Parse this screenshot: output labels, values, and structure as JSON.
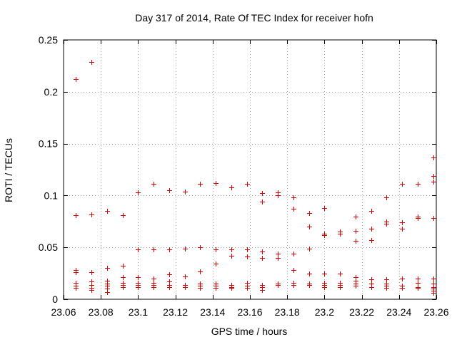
{
  "chart_data": {
    "type": "scatter",
    "title": "Day 317 of 2014, Rate Of TEC Index for receiver hofn",
    "xlabel": "GPS time / hours",
    "ylabel": "ROTI / TECUs",
    "xlim": [
      23.06,
      23.26
    ],
    "ylim": [
      0,
      0.25
    ],
    "xticks": [
      23.06,
      23.08,
      23.1,
      23.12,
      23.14,
      23.16,
      23.18,
      23.2,
      23.22,
      23.24,
      23.26
    ],
    "xtick_labels": [
      "23.06",
      "23.08",
      "23.1",
      "23.12",
      "23.14",
      "23.16",
      "23.18",
      "23.2",
      "23.22",
      "23.24",
      "23.26"
    ],
    "yticks": [
      0,
      0.05,
      0.1,
      0.15,
      0.2,
      0.25
    ],
    "ytick_labels": [
      "0",
      "0.05",
      "0.1",
      "0.15",
      "0.2",
      "0.25"
    ],
    "grid": true,
    "marker": "+",
    "color": "#dd0000",
    "series": [
      {
        "name": "ROTI",
        "points": [
          [
            23.0667,
            0.212
          ],
          [
            23.0667,
            0.081
          ],
          [
            23.0667,
            0.028
          ],
          [
            23.0667,
            0.026
          ],
          [
            23.0667,
            0.016
          ],
          [
            23.0667,
            0.013
          ],
          [
            23.0667,
            0.011
          ],
          [
            23.075,
            0.229
          ],
          [
            23.075,
            0.082
          ],
          [
            23.075,
            0.026
          ],
          [
            23.075,
            0.017
          ],
          [
            23.075,
            0.014
          ],
          [
            23.075,
            0.011
          ],
          [
            23.075,
            0.009
          ],
          [
            23.0833,
            0.085
          ],
          [
            23.0833,
            0.03
          ],
          [
            23.0833,
            0.018
          ],
          [
            23.0833,
            0.015
          ],
          [
            23.0833,
            0.013
          ],
          [
            23.0833,
            0.01
          ],
          [
            23.0833,
            0.007
          ],
          [
            23.0917,
            0.081
          ],
          [
            23.0917,
            0.032
          ],
          [
            23.0917,
            0.021
          ],
          [
            23.0917,
            0.016
          ],
          [
            23.0917,
            0.014
          ],
          [
            23.0917,
            0.012
          ],
          [
            23.1,
            0.103
          ],
          [
            23.1,
            0.048
          ],
          [
            23.1,
            0.021
          ],
          [
            23.1,
            0.016
          ],
          [
            23.1,
            0.014
          ],
          [
            23.1,
            0.012
          ],
          [
            23.1083,
            0.111
          ],
          [
            23.1083,
            0.048
          ],
          [
            23.1083,
            0.02
          ],
          [
            23.1083,
            0.016
          ],
          [
            23.1083,
            0.014
          ],
          [
            23.1083,
            0.012
          ],
          [
            23.1167,
            0.105
          ],
          [
            23.1167,
            0.048
          ],
          [
            23.1167,
            0.024
          ],
          [
            23.1167,
            0.017
          ],
          [
            23.1167,
            0.014
          ],
          [
            23.1167,
            0.012
          ],
          [
            23.125,
            0.104
          ],
          [
            23.125,
            0.049
          ],
          [
            23.125,
            0.022
          ],
          [
            23.125,
            0.014
          ],
          [
            23.125,
            0.012
          ],
          [
            23.1333,
            0.111
          ],
          [
            23.1333,
            0.05
          ],
          [
            23.1333,
            0.027
          ],
          [
            23.1333,
            0.015
          ],
          [
            23.1333,
            0.013
          ],
          [
            23.1333,
            0.011
          ],
          [
            23.1417,
            0.112
          ],
          [
            23.1417,
            0.048
          ],
          [
            23.1417,
            0.034
          ],
          [
            23.1417,
            0.015
          ],
          [
            23.1417,
            0.013
          ],
          [
            23.1417,
            0.011
          ],
          [
            23.15,
            0.108
          ],
          [
            23.15,
            0.048
          ],
          [
            23.15,
            0.042
          ],
          [
            23.15,
            0.014
          ],
          [
            23.15,
            0.012
          ],
          [
            23.15,
            0.011
          ],
          [
            23.1583,
            0.111
          ],
          [
            23.1583,
            0.048
          ],
          [
            23.1583,
            0.041
          ],
          [
            23.1583,
            0.016
          ],
          [
            23.1583,
            0.013
          ],
          [
            23.1583,
            0.011
          ],
          [
            23.1667,
            0.102
          ],
          [
            23.1667,
            0.094
          ],
          [
            23.1667,
            0.046
          ],
          [
            23.1667,
            0.04
          ],
          [
            23.1667,
            0.014
          ],
          [
            23.1667,
            0.012
          ],
          [
            23.1667,
            0.009
          ],
          [
            23.175,
            0.103
          ],
          [
            23.175,
            0.1
          ],
          [
            23.175,
            0.044
          ],
          [
            23.175,
            0.04
          ],
          [
            23.175,
            0.015
          ],
          [
            23.175,
            0.014
          ],
          [
            23.1833,
            0.098
          ],
          [
            23.1833,
            0.087
          ],
          [
            23.1833,
            0.044
          ],
          [
            23.1833,
            0.028
          ],
          [
            23.1833,
            0.016
          ],
          [
            23.1833,
            0.014
          ],
          [
            23.1917,
            0.083
          ],
          [
            23.1917,
            0.07
          ],
          [
            23.1917,
            0.049
          ],
          [
            23.1917,
            0.025
          ],
          [
            23.1917,
            0.015
          ],
          [
            23.1917,
            0.014
          ],
          [
            23.2,
            0.088
          ],
          [
            23.2,
            0.063
          ],
          [
            23.2,
            0.062
          ],
          [
            23.2,
            0.025
          ],
          [
            23.2,
            0.016
          ],
          [
            23.2,
            0.014
          ],
          [
            23.2,
            0.012
          ],
          [
            23.2083,
            0.065
          ],
          [
            23.2083,
            0.063
          ],
          [
            23.2083,
            0.025
          ],
          [
            23.2083,
            0.016
          ],
          [
            23.2083,
            0.014
          ],
          [
            23.2083,
            0.012
          ],
          [
            23.2167,
            0.08
          ],
          [
            23.2167,
            0.066
          ],
          [
            23.2167,
            0.056
          ],
          [
            23.2167,
            0.021
          ],
          [
            23.2167,
            0.018
          ],
          [
            23.2167,
            0.015
          ],
          [
            23.2167,
            0.013
          ],
          [
            23.225,
            0.085
          ],
          [
            23.225,
            0.068
          ],
          [
            23.225,
            0.057
          ],
          [
            23.225,
            0.019
          ],
          [
            23.225,
            0.015
          ],
          [
            23.225,
            0.012
          ],
          [
            23.2333,
            0.098
          ],
          [
            23.2333,
            0.075
          ],
          [
            23.2333,
            0.073
          ],
          [
            23.2333,
            0.019
          ],
          [
            23.2333,
            0.015
          ],
          [
            23.2333,
            0.013
          ],
          [
            23.2333,
            0.011
          ],
          [
            23.2417,
            0.111
          ],
          [
            23.2417,
            0.074
          ],
          [
            23.2417,
            0.068
          ],
          [
            23.2417,
            0.02
          ],
          [
            23.2417,
            0.013
          ],
          [
            23.2417,
            0.011
          ],
          [
            23.25,
            0.111
          ],
          [
            23.25,
            0.08
          ],
          [
            23.25,
            0.078
          ],
          [
            23.25,
            0.02
          ],
          [
            23.25,
            0.016
          ],
          [
            23.25,
            0.012
          ],
          [
            23.25,
            0.011
          ],
          [
            23.2583,
            0.137
          ],
          [
            23.2583,
            0.119
          ],
          [
            23.2583,
            0.113
          ],
          [
            23.2583,
            0.078
          ],
          [
            23.2583,
            0.02
          ],
          [
            23.2583,
            0.015
          ],
          [
            23.2583,
            0.012
          ],
          [
            23.2583,
            0.01
          ],
          [
            23.2583,
            0.008
          ],
          [
            23.2583,
            0.006
          ]
        ]
      }
    ]
  }
}
